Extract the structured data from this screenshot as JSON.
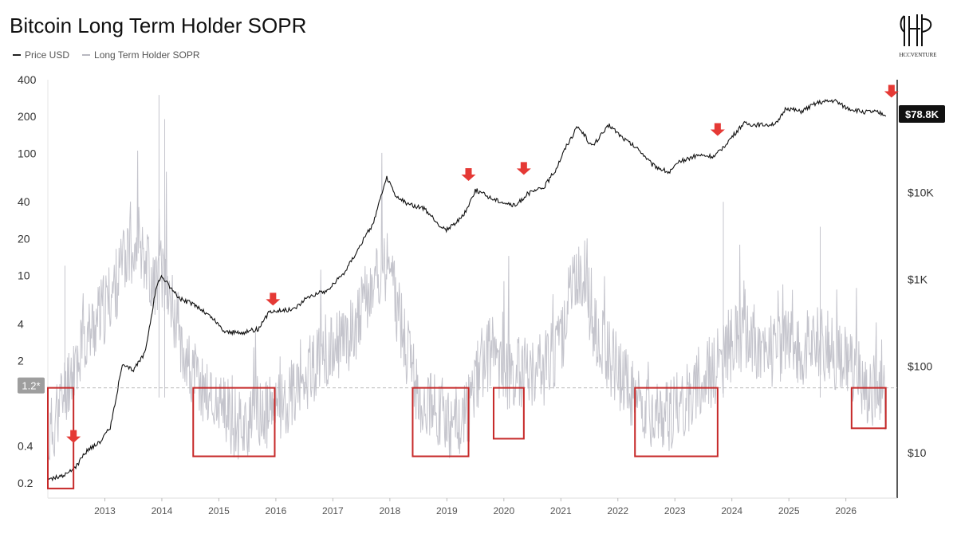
{
  "title": "Bitcoin Long Term Holder SOPR",
  "legend": [
    {
      "label": "Price USD",
      "color": "#222222"
    },
    {
      "label": "Long Term Holder SOPR",
      "color": "#b8b8c0"
    }
  ],
  "logo_text": "HCCVENTURE",
  "colors": {
    "price": "#111111",
    "sopr": "#c4c4cc",
    "box": "#c62828",
    "arrow": "#e53935",
    "badge": "#111111"
  },
  "chart_data": {
    "type": "line",
    "title": "Bitcoin Long Term Holder SOPR",
    "x_ticks": [
      "2013",
      "2014",
      "2015",
      "2016",
      "2017",
      "2018",
      "2019",
      "2020",
      "2021",
      "2022",
      "2023",
      "2024",
      "2025",
      "2026"
    ],
    "xlim": [
      2012.0,
      2026.9
    ],
    "left_axis": {
      "label": "",
      "scale": "log",
      "ticks": [
        "400",
        "200",
        "100",
        "40",
        "20",
        "10",
        "4",
        "2",
        "0.4",
        "0.2"
      ],
      "ylim": [
        0.15,
        400
      ]
    },
    "right_axis": {
      "label": "",
      "scale": "log",
      "ticks": [
        "$10K",
        "$1K",
        "$100",
        "$10"
      ],
      "ylim": [
        3,
        200000
      ]
    },
    "reference_line": {
      "label": "1.2*",
      "value": 1.2,
      "axis": "left"
    },
    "price_badge": "$78.8K",
    "series": [
      {
        "name": "Price USD",
        "axis": "right",
        "x": [
          2012.0,
          2012.3,
          2012.5,
          2012.7,
          2012.9,
          2013.1,
          2013.3,
          2013.5,
          2013.7,
          2013.9,
          2014.0,
          2014.3,
          2014.6,
          2014.9,
          2015.1,
          2015.4,
          2015.7,
          2015.9,
          2016.3,
          2016.6,
          2016.9,
          2017.2,
          2017.5,
          2017.7,
          2017.95,
          2018.1,
          2018.3,
          2018.6,
          2018.9,
          2019.0,
          2019.3,
          2019.5,
          2019.8,
          2020.2,
          2020.4,
          2020.7,
          2020.9,
          2021.1,
          2021.3,
          2021.55,
          2021.85,
          2022.1,
          2022.4,
          2022.6,
          2022.9,
          2023.1,
          2023.4,
          2023.7,
          2023.95,
          2024.2,
          2024.5,
          2024.8,
          2024.95,
          2025.2,
          2025.5,
          2025.8,
          2026.0,
          2026.3,
          2026.5,
          2026.7
        ],
        "values": [
          5,
          5.5,
          7,
          11,
          13,
          20,
          100,
          90,
          140,
          800,
          1100,
          600,
          500,
          350,
          250,
          240,
          270,
          430,
          450,
          650,
          740,
          1200,
          2600,
          4300,
          15000,
          9000,
          7500,
          6500,
          4000,
          3700,
          5500,
          10800,
          8500,
          7000,
          9500,
          11500,
          18000,
          35000,
          58000,
          34000,
          60000,
          42000,
          30000,
          21000,
          17000,
          23000,
          27000,
          26000,
          40000,
          62000,
          60000,
          63000,
          95000,
          85000,
          108000,
          115000,
          95000,
          85000,
          85000,
          78800
        ]
      },
      {
        "name": "Long Term Holder SOPR",
        "axis": "left",
        "x": [
          2012.0,
          2012.4,
          2012.7,
          2013.0,
          2013.2,
          2013.45,
          2013.6,
          2013.85,
          2014.0,
          2014.2,
          2014.5,
          2014.8,
          2015.2,
          2015.6,
          2015.9,
          2016.3,
          2016.6,
          2016.9,
          2017.3,
          2017.6,
          2017.9,
          2018.05,
          2018.3,
          2018.5,
          2018.8,
          2019.1,
          2019.4,
          2019.6,
          2019.8,
          2020.1,
          2020.4,
          2020.7,
          2021.0,
          2021.15,
          2021.4,
          2021.6,
          2021.9,
          2022.2,
          2022.5,
          2022.8,
          2023.1,
          2023.4,
          2023.7,
          2024.0,
          2024.3,
          2024.6,
          2024.9,
          2025.2,
          2025.5,
          2025.8,
          2026.1,
          2026.4,
          2026.7
        ],
        "values": [
          0.4,
          1.5,
          3,
          5,
          8,
          15,
          20,
          8,
          10,
          5,
          1.5,
          1.0,
          0.6,
          0.55,
          0.7,
          1.0,
          1.6,
          2.0,
          3.0,
          6.0,
          12,
          8,
          2,
          1.0,
          0.8,
          0.55,
          0.8,
          1.8,
          2.2,
          1.4,
          1.5,
          1.6,
          2.5,
          7,
          10,
          3,
          1.8,
          1.1,
          0.7,
          0.6,
          0.8,
          1.2,
          1.6,
          2.5,
          3.0,
          2.2,
          2.5,
          2.3,
          2.8,
          2.2,
          1.6,
          1.1,
          0.9
        ]
      }
    ],
    "annotations": {
      "boxes": [
        {
          "x": [
            2012.0,
            2012.45
          ],
          "y": [
            0.18,
            1.2
          ]
        },
        {
          "x": [
            2014.55,
            2015.98
          ],
          "y": [
            0.33,
            1.2
          ]
        },
        {
          "x": [
            2018.4,
            2019.38
          ],
          "y": [
            0.33,
            1.2
          ]
        },
        {
          "x": [
            2019.82,
            2020.35
          ],
          "y": [
            0.46,
            1.2
          ]
        },
        {
          "x": [
            2022.3,
            2023.75
          ],
          "y": [
            0.33,
            1.2
          ]
        },
        {
          "x": [
            2026.1,
            2026.7
          ],
          "y": [
            0.56,
            1.2
          ]
        }
      ],
      "arrows": [
        {
          "x": 2012.45,
          "price": 11
        },
        {
          "x": 2015.95,
          "price": 420
        },
        {
          "x": 2019.38,
          "price": 11500
        },
        {
          "x": 2020.35,
          "price": 13500
        },
        {
          "x": 2023.75,
          "price": 38000
        },
        {
          "x": 2026.8,
          "price": 105000
        }
      ]
    }
  }
}
